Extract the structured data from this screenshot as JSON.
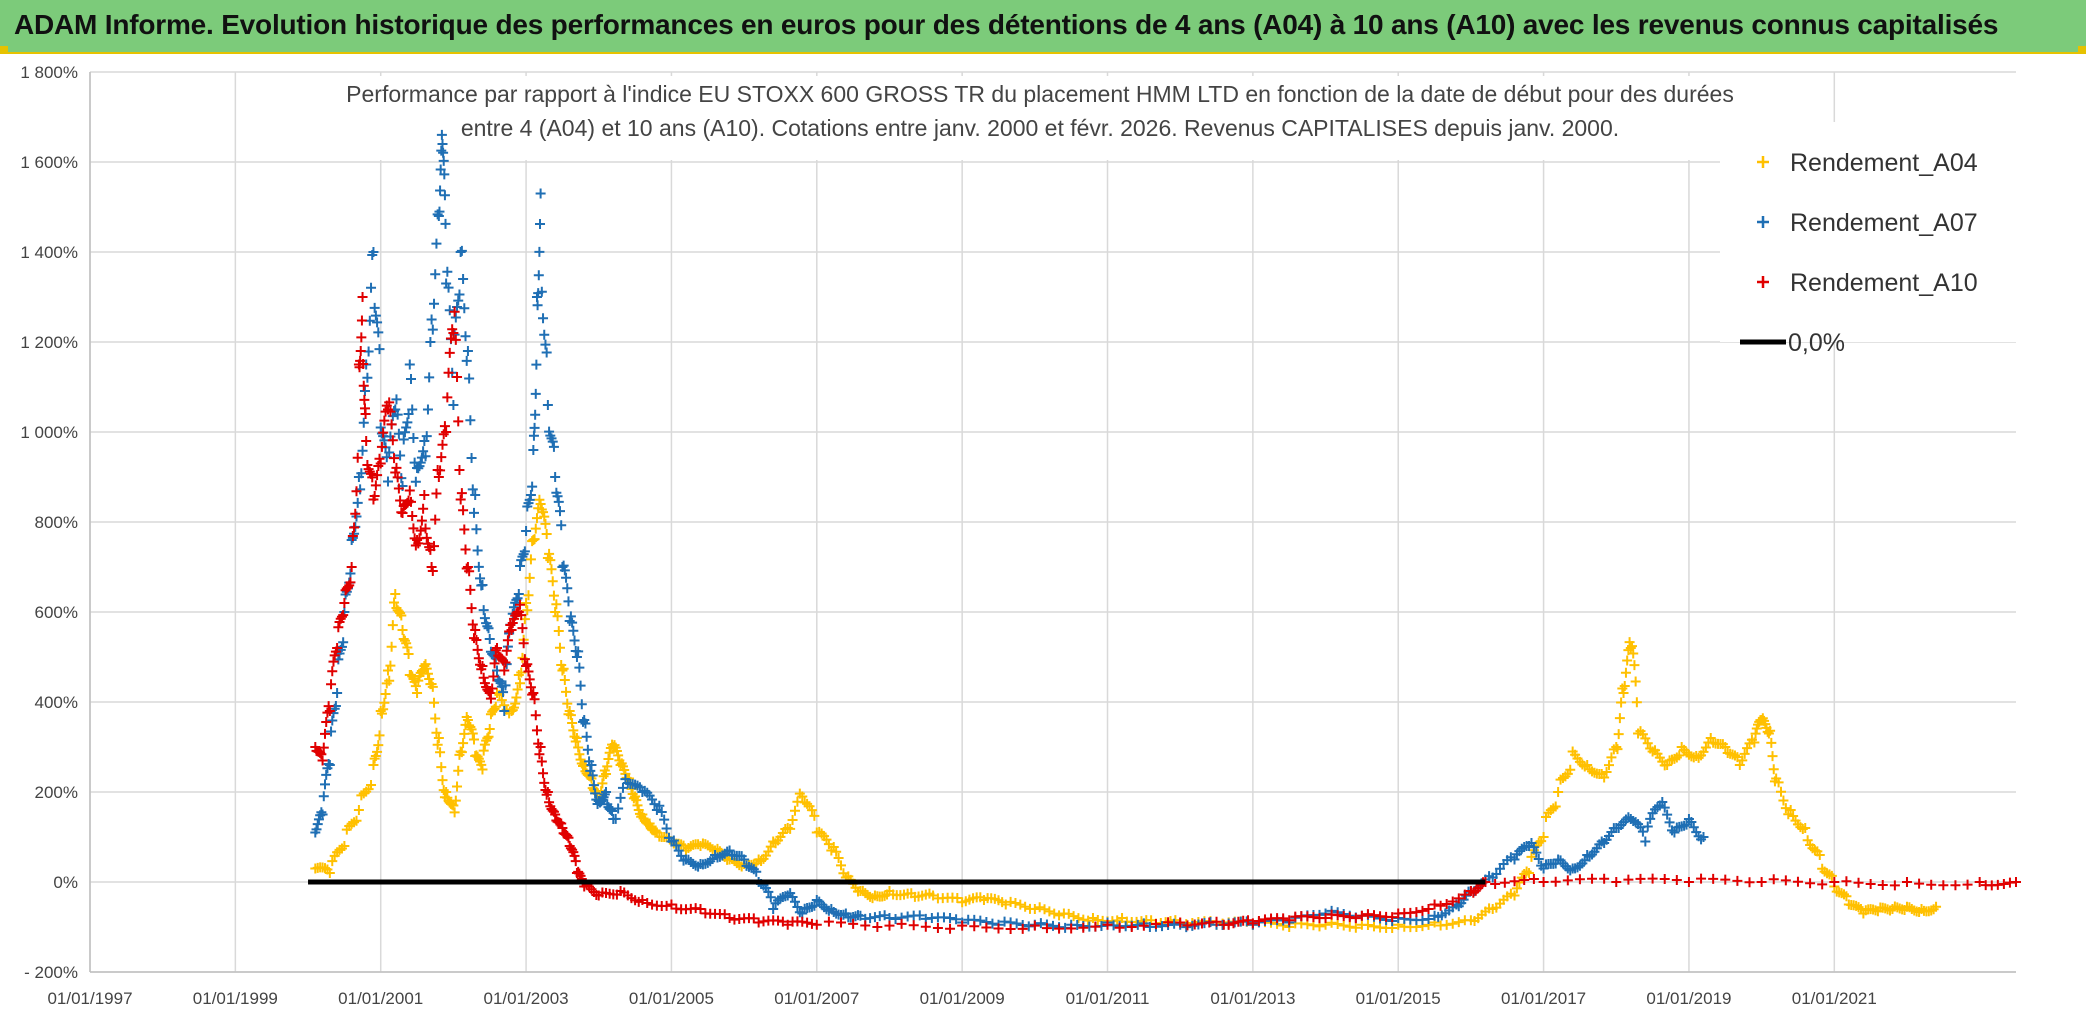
{
  "banner": {
    "title": "ADAM Informe. Evolution historique des performances en euros pour des détentions de 4 ans (A04) à 10 ans (A10) avec les revenus connus capitalisés",
    "background": "#7ccb7a"
  },
  "chart_data": {
    "type": "scatter",
    "title_lines": [
      "Performance par rapport à l'indice EU STOXX 600 GROSS TR  du placement HMM LTD en fonction de la date de début pour des durées",
      "entre 4 (A04) et 10 ans (A10). Cotations entre janv. 2000 et févr. 2026. Revenus CAPITALISES depuis janv. 2000."
    ],
    "xlabel": "",
    "ylabel": "",
    "xlim": [
      1997.0,
      2023.5
    ],
    "ylim": [
      -200,
      1800
    ],
    "x_tick_labels": [
      "01/01/1997",
      "01/01/1999",
      "01/01/2001",
      "01/01/2003",
      "01/01/2005",
      "01/01/2007",
      "01/01/2009",
      "01/01/2011",
      "01/01/2013",
      "01/01/2015",
      "01/01/2017",
      "01/01/2019",
      "01/01/2021"
    ],
    "x_tick_values": [
      1997,
      1999,
      2001,
      2003,
      2005,
      2007,
      2009,
      2011,
      2013,
      2015,
      2017,
      2019,
      2021
    ],
    "y_tick_labels": [
      "- 200%",
      "0%",
      "200%",
      "400%",
      "600%",
      "800%",
      "1 000%",
      "1 200%",
      "1 400%",
      "1 600%",
      "1 800%"
    ],
    "y_tick_values": [
      -200,
      0,
      200,
      400,
      600,
      800,
      1000,
      1200,
      1400,
      1600,
      1800
    ],
    "grid": true,
    "legend_position": "top-right",
    "series": [
      {
        "name": "Rendement_A04",
        "color": "#ffc000",
        "marker": "+",
        "points": [
          [
            2000.1,
            30
          ],
          [
            2000.3,
            20
          ],
          [
            2000.5,
            80
          ],
          [
            2000.7,
            160
          ],
          [
            2000.9,
            260
          ],
          [
            2001.0,
            380
          ],
          [
            2001.1,
            470
          ],
          [
            2001.2,
            640
          ],
          [
            2001.3,
            560
          ],
          [
            2001.4,
            460
          ],
          [
            2001.5,
            420
          ],
          [
            2001.6,
            480
          ],
          [
            2001.7,
            440
          ],
          [
            2001.8,
            320
          ],
          [
            2001.9,
            200
          ],
          [
            2002.0,
            170
          ],
          [
            2002.1,
            290
          ],
          [
            2002.2,
            360
          ],
          [
            2002.3,
            280
          ],
          [
            2002.4,
            250
          ],
          [
            2002.5,
            340
          ],
          [
            2002.6,
            420
          ],
          [
            2002.8,
            380
          ],
          [
            2002.9,
            460
          ],
          [
            2003.0,
            620
          ],
          [
            2003.1,
            760
          ],
          [
            2003.2,
            840
          ],
          [
            2003.3,
            720
          ],
          [
            2003.4,
            600
          ],
          [
            2003.5,
            470
          ],
          [
            2003.6,
            380
          ],
          [
            2003.7,
            320
          ],
          [
            2003.8,
            260
          ],
          [
            2003.9,
            230
          ],
          [
            2004.0,
            180
          ],
          [
            2004.1,
            240
          ],
          [
            2004.2,
            300
          ],
          [
            2004.3,
            260
          ],
          [
            2004.4,
            230
          ],
          [
            2004.5,
            190
          ],
          [
            2004.6,
            150
          ],
          [
            2004.7,
            130
          ],
          [
            2004.8,
            110
          ],
          [
            2005.0,
            90
          ],
          [
            2005.2,
            70
          ],
          [
            2005.4,
            80
          ],
          [
            2005.6,
            70
          ],
          [
            2005.8,
            50
          ],
          [
            2006.0,
            40
          ],
          [
            2006.2,
            50
          ],
          [
            2006.4,
            90
          ],
          [
            2006.6,
            120
          ],
          [
            2006.8,
            190
          ],
          [
            2007.0,
            110
          ],
          [
            2007.2,
            70
          ],
          [
            2007.4,
            10
          ],
          [
            2007.6,
            -20
          ],
          [
            2007.8,
            -30
          ],
          [
            2008.0,
            -20
          ],
          [
            2008.3,
            -25
          ],
          [
            2008.6,
            -30
          ],
          [
            2009.0,
            -45
          ],
          [
            2009.3,
            -40
          ],
          [
            2009.6,
            -50
          ],
          [
            2010.0,
            -60
          ],
          [
            2010.4,
            -70
          ],
          [
            2010.8,
            -80
          ],
          [
            2011.2,
            -80
          ],
          [
            2011.6,
            -85
          ],
          [
            2012.0,
            -90
          ],
          [
            2012.5,
            -95
          ],
          [
            2013.0,
            -95
          ],
          [
            2013.5,
            -100
          ],
          [
            2014.0,
            -95
          ],
          [
            2014.5,
            -95
          ],
          [
            2015.0,
            -95
          ],
          [
            2015.5,
            -90
          ],
          [
            2016.0,
            -85
          ],
          [
            2016.3,
            -60
          ],
          [
            2016.6,
            -30
          ],
          [
            2016.8,
            20
          ],
          [
            2017.0,
            100
          ],
          [
            2017.2,
            200
          ],
          [
            2017.4,
            290
          ],
          [
            2017.6,
            260
          ],
          [
            2017.8,
            240
          ],
          [
            2018.0,
            300
          ],
          [
            2018.1,
            420
          ],
          [
            2018.2,
            520
          ],
          [
            2018.3,
            330
          ],
          [
            2018.5,
            290
          ],
          [
            2018.7,
            260
          ],
          [
            2018.9,
            300
          ],
          [
            2019.1,
            280
          ],
          [
            2019.3,
            320
          ],
          [
            2019.5,
            300
          ],
          [
            2019.7,
            260
          ],
          [
            2019.9,
            310
          ],
          [
            2020.0,
            360
          ],
          [
            2020.1,
            330
          ],
          [
            2020.2,
            230
          ],
          [
            2020.4,
            160
          ],
          [
            2020.6,
            120
          ],
          [
            2020.8,
            60
          ],
          [
            2021.0,
            -10
          ],
          [
            2021.2,
            -50
          ],
          [
            2021.4,
            -70
          ],
          [
            2021.6,
            -65
          ],
          [
            2021.8,
            -60
          ],
          [
            2022.0,
            -55
          ],
          [
            2022.2,
            -60
          ],
          [
            2022.4,
            -55
          ]
        ]
      },
      {
        "name": "Rendement_A07",
        "color": "#1f6fb4",
        "marker": "+",
        "points": [
          [
            2000.1,
            110
          ],
          [
            2000.2,
            150
          ],
          [
            2000.3,
            260
          ],
          [
            2000.4,
            420
          ],
          [
            2000.5,
            600
          ],
          [
            2000.6,
            760
          ],
          [
            2000.7,
            900
          ],
          [
            2000.8,
            1150
          ],
          [
            2000.9,
            1400
          ],
          [
            2001.0,
            1010
          ],
          [
            2001.1,
            890
          ],
          [
            2001.2,
            1050
          ],
          [
            2001.3,
            880
          ],
          [
            2001.4,
            1150
          ],
          [
            2001.5,
            920
          ],
          [
            2001.6,
            980
          ],
          [
            2001.7,
            1250
          ],
          [
            2001.8,
            1480
          ],
          [
            2001.85,
            1640
          ],
          [
            2001.9,
            1330
          ],
          [
            2002.0,
            1060
          ],
          [
            2002.1,
            1400
          ],
          [
            2002.2,
            1180
          ],
          [
            2002.3,
            860
          ],
          [
            2002.4,
            660
          ],
          [
            2002.5,
            540
          ],
          [
            2002.6,
            470
          ],
          [
            2002.7,
            380
          ],
          [
            2002.8,
            560
          ],
          [
            2002.9,
            640
          ],
          [
            2003.0,
            780
          ],
          [
            2003.1,
            960
          ],
          [
            2003.15,
            1300
          ],
          [
            2003.2,
            1530
          ],
          [
            2003.3,
            1060
          ],
          [
            2003.4,
            900
          ],
          [
            2003.5,
            700
          ],
          [
            2003.6,
            580
          ],
          [
            2003.7,
            500
          ],
          [
            2003.8,
            360
          ],
          [
            2003.9,
            260
          ],
          [
            2004.0,
            180
          ],
          [
            2004.1,
            200
          ],
          [
            2004.2,
            140
          ],
          [
            2004.4,
            220
          ],
          [
            2004.6,
            200
          ],
          [
            2004.8,
            160
          ],
          [
            2005.0,
            90
          ],
          [
            2005.2,
            50
          ],
          [
            2005.4,
            40
          ],
          [
            2005.6,
            60
          ],
          [
            2005.8,
            70
          ],
          [
            2006.0,
            50
          ],
          [
            2006.2,
            0
          ],
          [
            2006.4,
            -60
          ],
          [
            2006.6,
            -30
          ],
          [
            2006.8,
            -70
          ],
          [
            2007.0,
            -40
          ],
          [
            2007.2,
            -60
          ],
          [
            2007.4,
            -70
          ],
          [
            2007.6,
            -75
          ],
          [
            2008.0,
            -80
          ],
          [
            2008.5,
            -82
          ],
          [
            2009.0,
            -90
          ],
          [
            2009.5,
            -95
          ],
          [
            2010.0,
            -95
          ],
          [
            2010.5,
            -95
          ],
          [
            2011.0,
            -90
          ],
          [
            2011.5,
            -92
          ],
          [
            2012.0,
            -95
          ],
          [
            2012.5,
            -95
          ],
          [
            2013.0,
            -95
          ],
          [
            2013.5,
            -90
          ],
          [
            2014.0,
            -70
          ],
          [
            2014.5,
            -75
          ],
          [
            2015.0,
            -80
          ],
          [
            2015.5,
            -75
          ],
          [
            2015.8,
            -50
          ],
          [
            2016.0,
            -20
          ],
          [
            2016.3,
            10
          ],
          [
            2016.6,
            50
          ],
          [
            2016.8,
            80
          ],
          [
            2017.0,
            30
          ],
          [
            2017.2,
            50
          ],
          [
            2017.4,
            30
          ],
          [
            2017.6,
            60
          ],
          [
            2017.8,
            90
          ],
          [
            2018.0,
            120
          ],
          [
            2018.2,
            140
          ],
          [
            2018.4,
            90
          ],
          [
            2018.6,
            170
          ],
          [
            2018.8,
            110
          ],
          [
            2019.0,
            140
          ],
          [
            2019.2,
            100
          ]
        ]
      },
      {
        "name": "Rendement_A10",
        "color": "#e00000",
        "marker": "+",
        "points": [
          [
            2000.1,
            300
          ],
          [
            2000.2,
            270
          ],
          [
            2000.3,
            380
          ],
          [
            2000.4,
            520
          ],
          [
            2000.5,
            620
          ],
          [
            2000.6,
            700
          ],
          [
            2000.7,
            1150
          ],
          [
            2000.75,
            1300
          ],
          [
            2000.8,
            980
          ],
          [
            2000.9,
            850
          ],
          [
            2001.0,
            930
          ],
          [
            2001.1,
            1050
          ],
          [
            2001.2,
            910
          ],
          [
            2001.3,
            820
          ],
          [
            2001.4,
            870
          ],
          [
            2001.5,
            760
          ],
          [
            2001.6,
            860
          ],
          [
            2001.7,
            700
          ],
          [
            2001.8,
            900
          ],
          [
            2001.9,
            1000
          ],
          [
            2002.0,
            1220
          ],
          [
            2002.1,
            850
          ],
          [
            2002.2,
            700
          ],
          [
            2002.3,
            560
          ],
          [
            2002.4,
            480
          ],
          [
            2002.5,
            420
          ],
          [
            2002.6,
            520
          ],
          [
            2002.7,
            470
          ],
          [
            2002.8,
            560
          ],
          [
            2002.9,
            600
          ],
          [
            2003.0,
            480
          ],
          [
            2003.1,
            420
          ],
          [
            2003.2,
            300
          ],
          [
            2003.3,
            200
          ],
          [
            2003.4,
            150
          ],
          [
            2003.5,
            120
          ],
          [
            2003.6,
            80
          ],
          [
            2003.7,
            20
          ],
          [
            2003.8,
            -10
          ],
          [
            2004.0,
            -30
          ],
          [
            2004.3,
            -20
          ],
          [
            2004.6,
            -40
          ],
          [
            2005.0,
            -50
          ],
          [
            2005.4,
            -60
          ],
          [
            2005.8,
            -80
          ],
          [
            2006.2,
            -90
          ],
          [
            2006.6,
            -95
          ],
          [
            2007.0,
            -95
          ],
          [
            2008.0,
            -97
          ],
          [
            2009.0,
            -97
          ],
          [
            2010.0,
            -97
          ],
          [
            2011.0,
            -95
          ],
          [
            2012.0,
            -90
          ],
          [
            2012.6,
            -95
          ],
          [
            2013.0,
            -92
          ],
          [
            2013.5,
            -85
          ],
          [
            2014.0,
            -80
          ],
          [
            2014.5,
            -75
          ],
          [
            2015.0,
            -70
          ],
          [
            2015.5,
            -50
          ],
          [
            2016.0,
            -20
          ],
          [
            2016.2,
            0
          ],
          [
            2017.0,
            0
          ],
          [
            2018.0,
            0
          ],
          [
            2019.0,
            0
          ],
          [
            2020.0,
            0
          ],
          [
            2021.0,
            0
          ],
          [
            2022.0,
            0
          ],
          [
            2023.0,
            0
          ],
          [
            2023.5,
            0
          ]
        ]
      },
      {
        "name": "0,0%",
        "color": "#000000",
        "marker": "line",
        "points": [
          [
            2000.0,
            0
          ],
          [
            2016.2,
            0
          ]
        ]
      }
    ]
  }
}
